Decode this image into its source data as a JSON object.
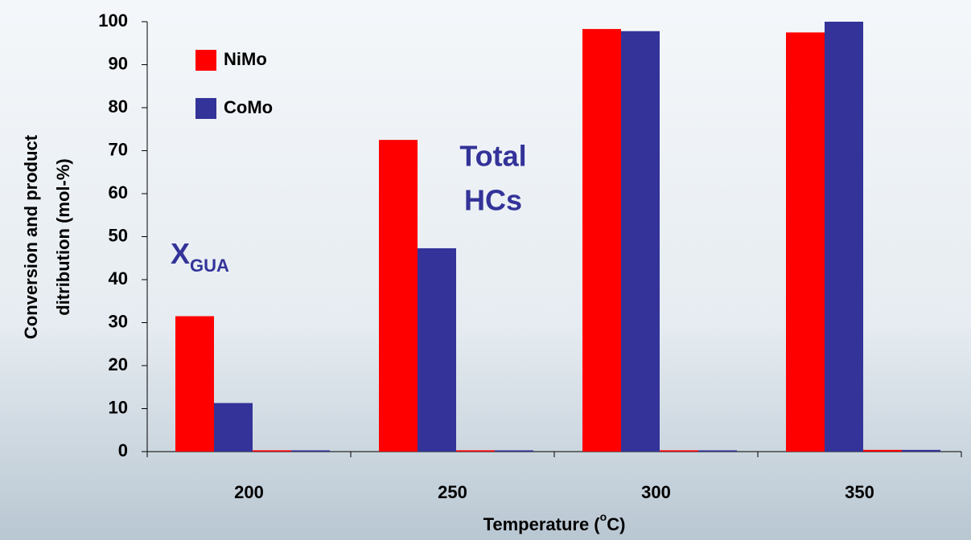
{
  "chart_data": {
    "type": "bar",
    "xlabel": [
      "Temperature (",
      "o",
      "C)"
    ],
    "ylabel": [
      "Conversion and product",
      "ditribution (mol-%)"
    ],
    "categories": [
      "200",
      "250",
      "300",
      "350"
    ],
    "series": [
      {
        "name": "NiMo",
        "color": "#ff0000",
        "values": [
          31.5,
          72.5,
          98.3,
          97.5
        ]
      },
      {
        "name": "CoMo",
        "color": "#333399",
        "values": [
          11.3,
          47.3,
          97.8,
          100
        ]
      },
      {
        "color": "#ff0000",
        "values": [
          0.3,
          0.3,
          0.3,
          0.4
        ]
      },
      {
        "color": "#333399",
        "values": [
          0.3,
          0.3,
          0.3,
          0.4
        ]
      }
    ],
    "ylim": [
      0,
      100
    ],
    "yticks": [
      0,
      10,
      20,
      30,
      40,
      50,
      60,
      70,
      80,
      90,
      100
    ],
    "annotations": [
      [
        "X",
        "GUA"
      ],
      [
        "Total",
        "HCs"
      ]
    ],
    "legend": "upper left"
  }
}
